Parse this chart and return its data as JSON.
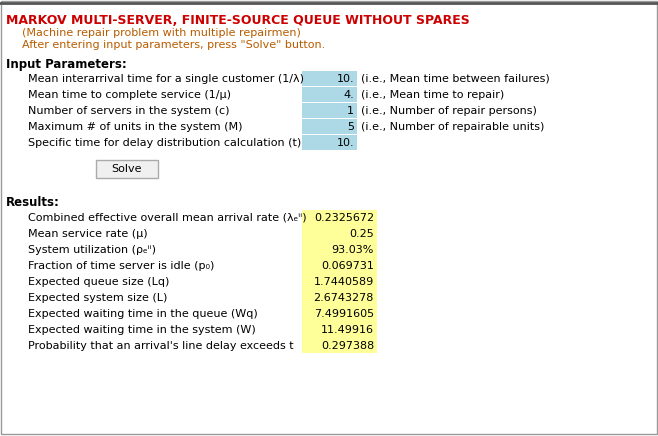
{
  "title": "MARKOV MULTI-SERVER, FINITE-SOURCE QUEUE WITHOUT SPARES",
  "subtitle1": "(Machine repair problem with multiple repairmen)",
  "subtitle2": "After entering input parameters, press \"Solve\" button.",
  "input_label": "Input Parameters:",
  "input_params": [
    "Mean interarrival time for a single customer (1/λ)",
    "Mean time to complete service (1/μ)",
    "Number of servers in the system (c)",
    "Maximum # of units in the system (M)",
    "Specific time for delay distribution calculation (t)"
  ],
  "input_values": [
    "10.",
    "4.",
    "1",
    "5",
    "10."
  ],
  "input_notes": [
    "(i.e., Mean time between failures)",
    "(i.e., Mean time to repair)",
    "(i.e., Number of repair persons)",
    "(i.e., Number of repairable units)",
    ""
  ],
  "solve_button": "Solve",
  "results_label": "Results:",
  "result_params": [
    "Combined effective overall mean arrival rate (λₑⁱⁱ)",
    "Mean service rate (μ)",
    "System utilization (ρₑⁱⁱ)",
    "Fraction of time server is idle (p₀)",
    "Expected queue size (Lq)",
    "Expected system size (L)",
    "Expected waiting time in the queue (Wq)",
    "Expected waiting time in the system (W)",
    "Probability that an arrival's line delay exceeds t"
  ],
  "result_values": [
    "0.2325672",
    "0.25",
    "93.03%",
    "0.069731",
    "1.7440589",
    "2.6743278",
    "7.4991605",
    "11.49916",
    "0.297388"
  ],
  "input_bg": "#add8e6",
  "result_highlight_bg": "#ffff99",
  "title_color": "#cc0000",
  "subtitle_color": "#b85c00",
  "border_color": "#999999",
  "bg_color": "#ffffff",
  "text_color": "#000000"
}
